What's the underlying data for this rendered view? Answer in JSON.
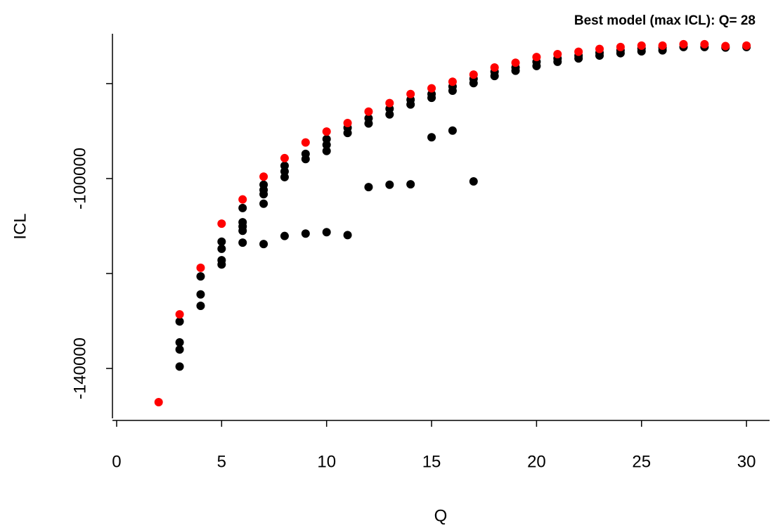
{
  "chart_data": {
    "type": "scatter",
    "title": "Best model (max ICL): Q= 28",
    "x_label": "Q",
    "y_label": "ICL",
    "xlim": [
      -0.2,
      31.1
    ],
    "xticks": [
      0,
      5,
      10,
      15,
      20,
      25,
      30
    ],
    "ylim": [
      -150500,
      -69500
    ],
    "yticks": [
      -140000,
      {
        "value": -120000,
        "label": null
      },
      -100000,
      {
        "value": -80000,
        "label": null
      }
    ],
    "series": [
      {
        "color": "#000000",
        "x": [
          3,
          3,
          3,
          3,
          4,
          4,
          4,
          5,
          5,
          5,
          5,
          6,
          6,
          6,
          6,
          6,
          7,
          7,
          7,
          7,
          7,
          8,
          8,
          8,
          8,
          9,
          9,
          9,
          10,
          10,
          10,
          10,
          11,
          11,
          11,
          12,
          12,
          12,
          13,
          13,
          13,
          14,
          14,
          14,
          15,
          15,
          15,
          16,
          16,
          16,
          17,
          17,
          17,
          18,
          18,
          19,
          19,
          20,
          20,
          21,
          21,
          22,
          22,
          23,
          23,
          24,
          24,
          25,
          25,
          26,
          26,
          27,
          28,
          29,
          30
        ],
        "values": [
          -130100,
          -134500,
          -136000,
          -139600,
          -120600,
          -124400,
          -126800,
          -113300,
          -114800,
          -117200,
          -118100,
          -106200,
          -109200,
          -110100,
          -111000,
          -113500,
          -101300,
          -102400,
          -103300,
          -105300,
          -113800,
          -97300,
          -98500,
          -99700,
          -112100,
          -94800,
          -95900,
          -111600,
          -91700,
          -92900,
          -94200,
          -111300,
          -89300,
          -90400,
          -111900,
          -87300,
          -88400,
          -101800,
          -85300,
          -86500,
          -101300,
          -83400,
          -84400,
          -101200,
          -82200,
          -83000,
          -91300,
          -80600,
          -81500,
          -89900,
          -79000,
          -79900,
          -100600,
          -77500,
          -78400,
          -76600,
          -77300,
          -75400,
          -76300,
          -74700,
          -75400,
          -74100,
          -74700,
          -73500,
          -74100,
          -73000,
          -73600,
          -72600,
          -73200,
          -72400,
          -73000,
          -72300,
          -72300,
          -72400,
          -72300
        ]
      },
      {
        "color": "#ff0000",
        "x": [
          2,
          3,
          4,
          5,
          6,
          7,
          8,
          9,
          10,
          11,
          12,
          13,
          14,
          15,
          16,
          17,
          18,
          19,
          20,
          21,
          22,
          23,
          24,
          25,
          26,
          27,
          28,
          29,
          30
        ],
        "values": [
          -147100,
          -128600,
          -118800,
          -109500,
          -104400,
          -99600,
          -95700,
          -92400,
          -90100,
          -88300,
          -85900,
          -84100,
          -82200,
          -81000,
          -79600,
          -78100,
          -76600,
          -75600,
          -74400,
          -73800,
          -73300,
          -72700,
          -72300,
          -72000,
          -72000,
          -71700,
          -71700,
          -72100,
          -72000
        ]
      }
    ]
  }
}
